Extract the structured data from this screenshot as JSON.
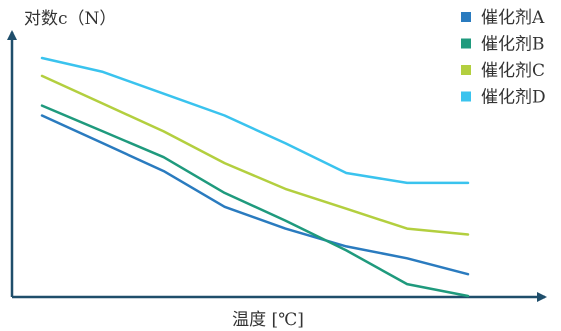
{
  "chart_data": {
    "type": "line",
    "ylabel": "对数c（N）",
    "xlabel": "温度 [℃]",
    "legend_position": "top-right",
    "grid": false,
    "x": [
      0,
      1,
      2,
      3,
      4,
      5,
      6,
      7
    ],
    "series": [
      {
        "name": "催化剂A",
        "color": "#2a7bbf",
        "values": [
          0.76,
          0.62,
          0.48,
          0.3,
          0.19,
          0.1,
          0.04,
          -0.04
        ]
      },
      {
        "name": "催化剂B",
        "color": "#1f9a7d",
        "values": [
          0.81,
          0.68,
          0.55,
          0.37,
          0.23,
          0.08,
          -0.09,
          -0.15
        ]
      },
      {
        "name": "催化剂C",
        "color": "#b3cf3f",
        "values": [
          0.96,
          0.82,
          0.68,
          0.52,
          0.39,
          0.29,
          0.19,
          0.16
        ]
      },
      {
        "name": "催化剂D",
        "color": "#3ac3ee",
        "values": [
          1.05,
          0.98,
          0.87,
          0.76,
          0.62,
          0.47,
          0.42,
          0.42
        ]
      }
    ]
  }
}
